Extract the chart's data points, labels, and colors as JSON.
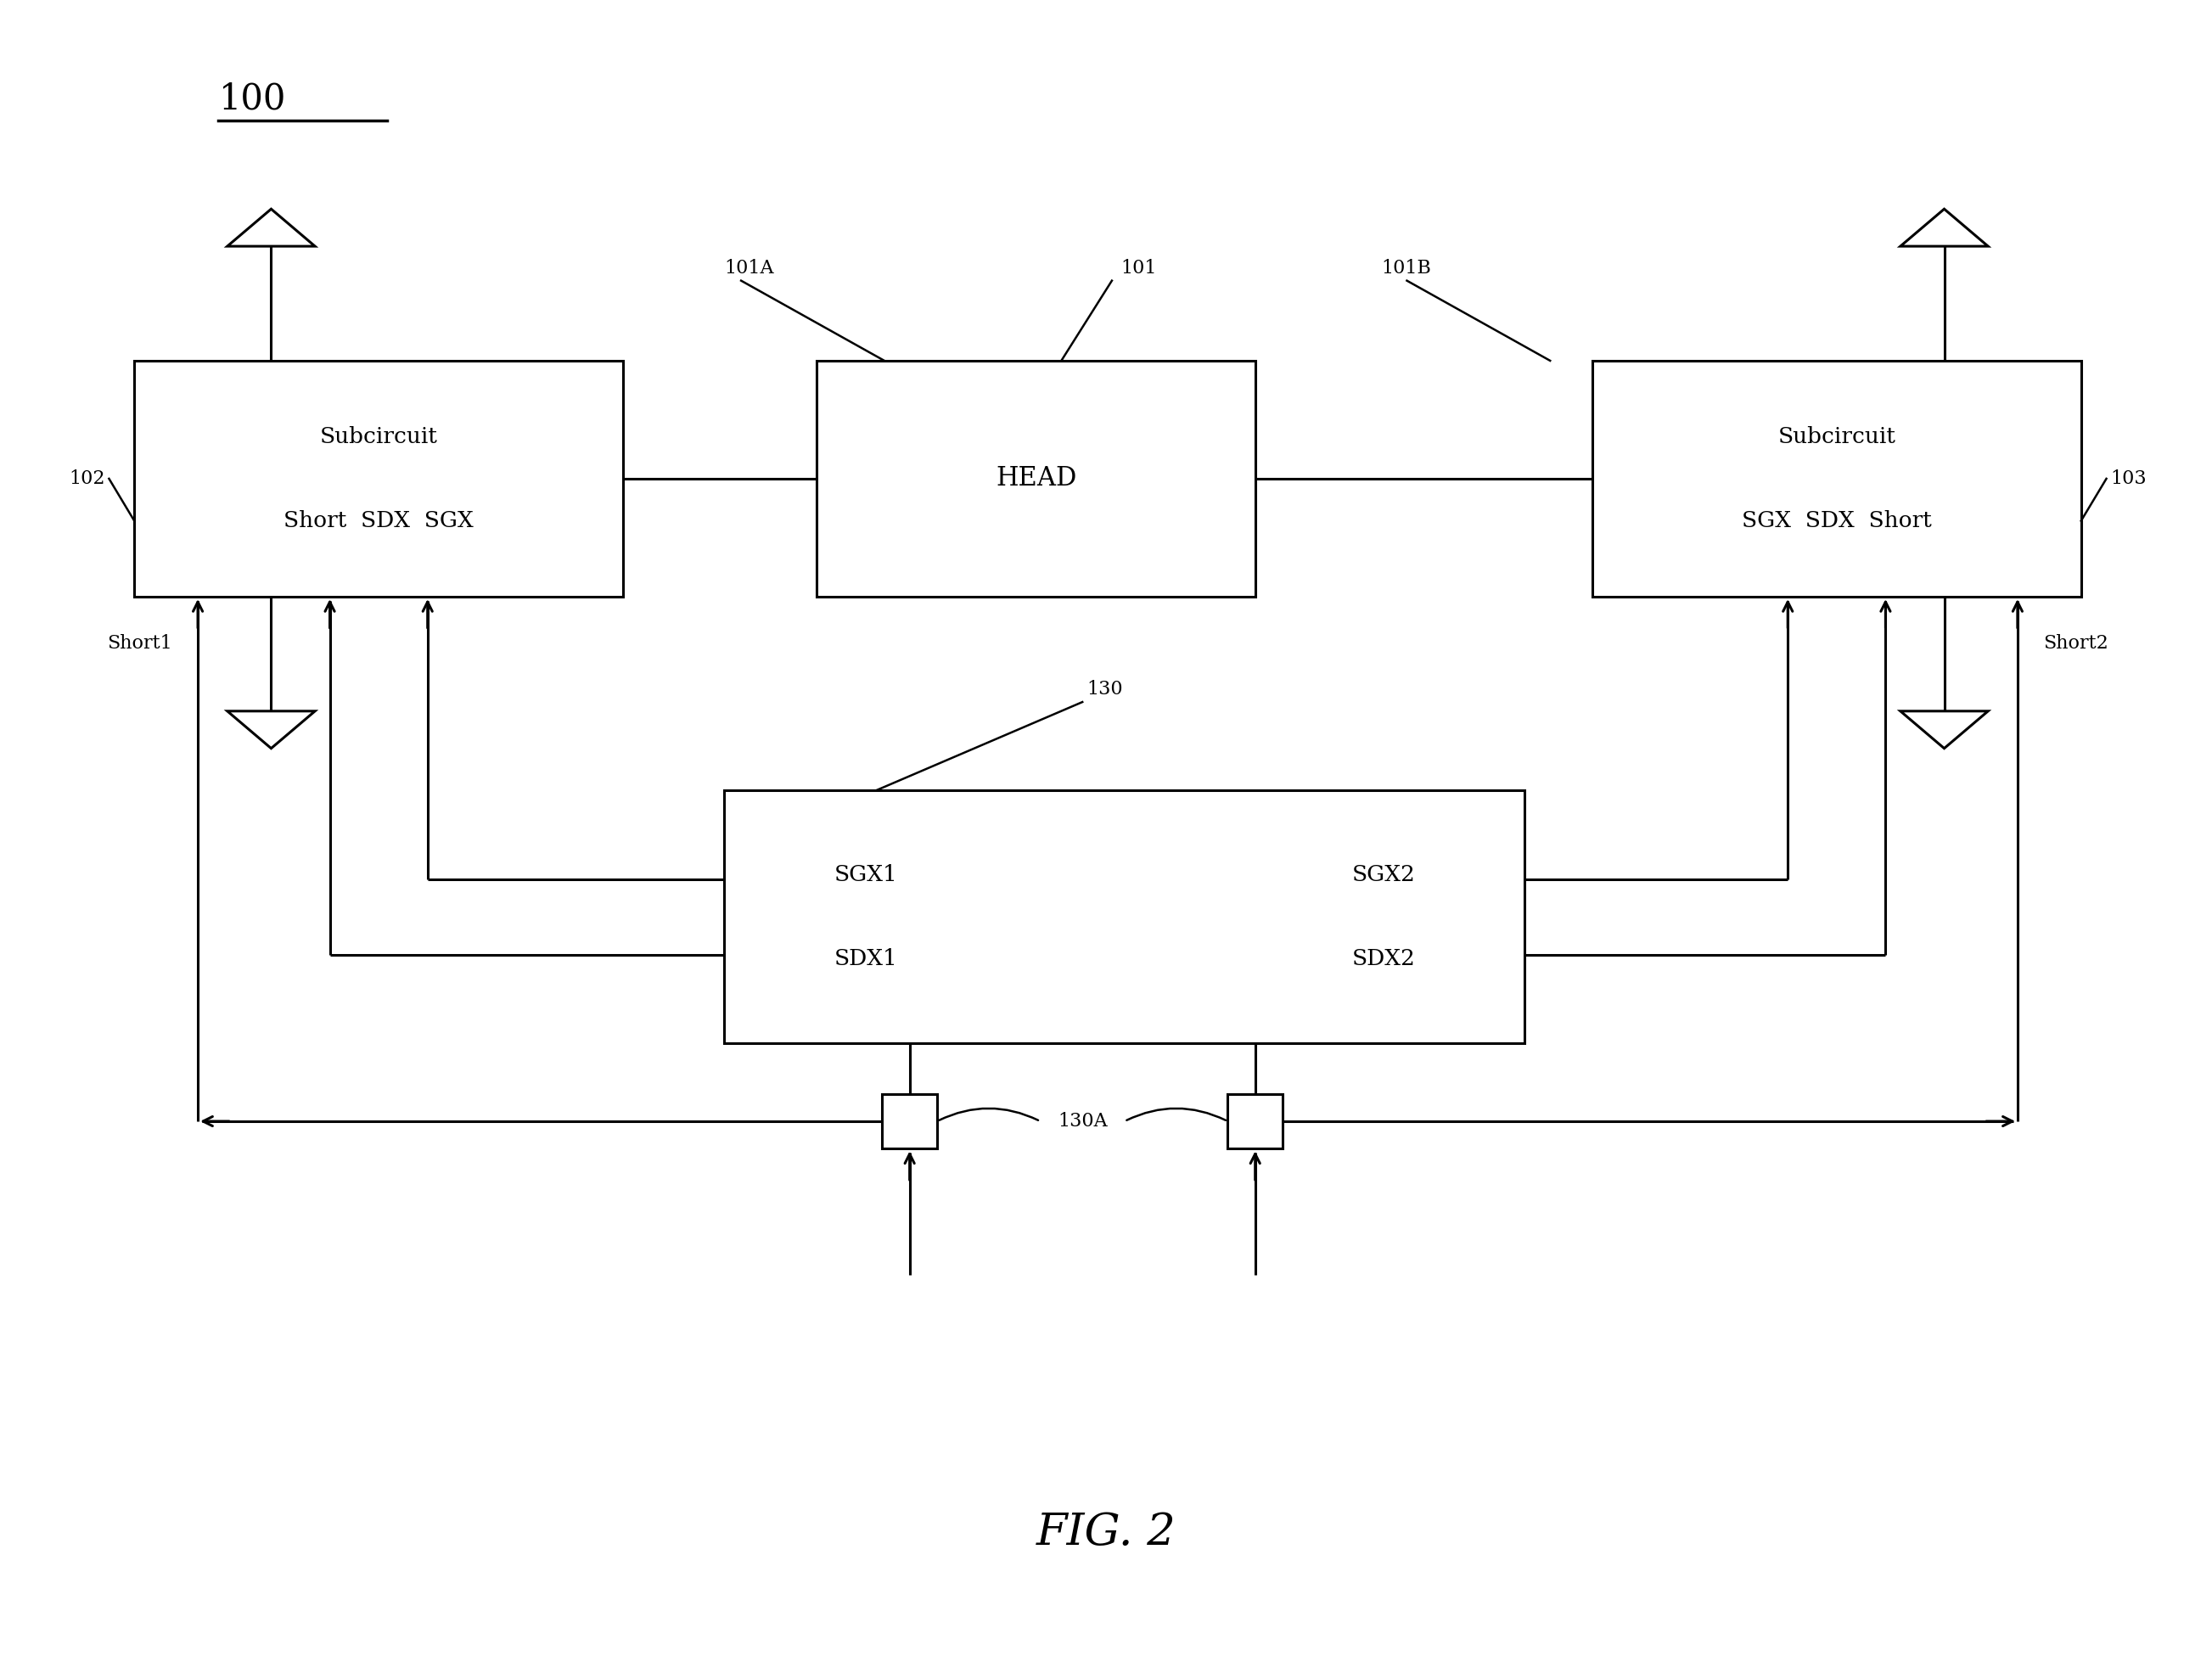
{
  "bg_color": "#ffffff",
  "line_color": "#000000",
  "fig_caption": "FIG. 2",
  "label_100": "100",
  "label_101": "101",
  "label_101A": "101A",
  "label_101B": "101B",
  "label_102": "102",
  "label_103": "103",
  "label_130": "130",
  "label_130A": "130A",
  "label_short1": "Short1",
  "label_short2": "Short2",
  "box_left_text1": "Subcircuit",
  "box_left_text2": "Short  SDX  SGX",
  "box_head_text": "HEAD",
  "box_right_text1": "Subcircuit",
  "box_right_text2": "SGX  SDX  Short",
  "box_bot_left_text1": "SGX1",
  "box_bot_left_text2": "SDX1",
  "box_bot_right_text1": "SGX2",
  "box_bot_right_text2": "SDX2"
}
